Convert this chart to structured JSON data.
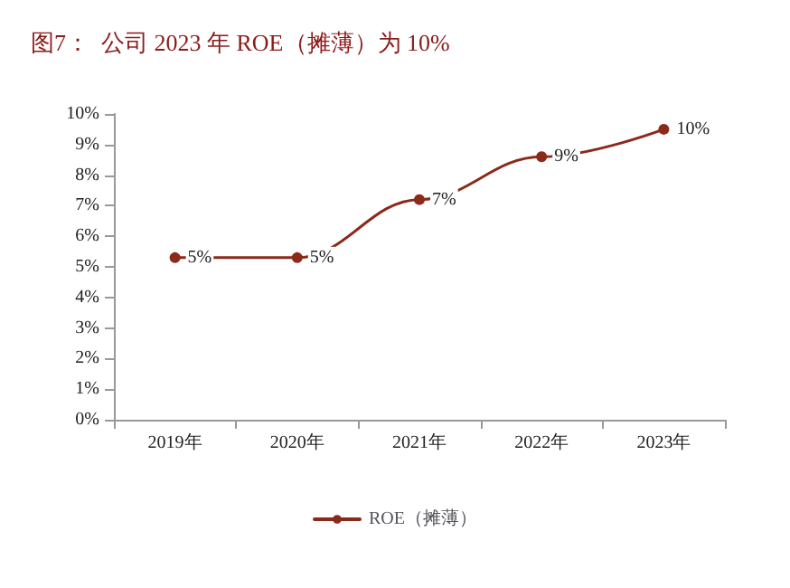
{
  "chart_data": {
    "type": "line",
    "title": "图7：  公司 2023 年 ROE（摊薄）为 10%",
    "categories": [
      "2019年",
      "2020年",
      "2021年",
      "2022年",
      "2023年"
    ],
    "series": [
      {
        "name": "ROE（摊薄）",
        "color": "#8b2a1a",
        "values": [
          5.3,
          5.3,
          7.2,
          8.6,
          9.5
        ],
        "value_labels": [
          "5%",
          "5%",
          "7%",
          "9%",
          "10%"
        ]
      }
    ],
    "ylim": [
      0,
      10
    ],
    "yticks": [
      {
        "value": 0,
        "label": "0%"
      },
      {
        "value": 1,
        "label": "1%"
      },
      {
        "value": 2,
        "label": "2%"
      },
      {
        "value": 3,
        "label": "3%"
      },
      {
        "value": 4,
        "label": "4%"
      },
      {
        "value": 5,
        "label": "5%"
      },
      {
        "value": 6,
        "label": "6%"
      },
      {
        "value": 7,
        "label": "7%"
      },
      {
        "value": 8,
        "label": "8%"
      },
      {
        "value": 9,
        "label": "9%"
      },
      {
        "value": 10,
        "label": "10%"
      }
    ],
    "grid": false,
    "legend": "bottom",
    "marker": "circle",
    "line_style": "solid"
  }
}
